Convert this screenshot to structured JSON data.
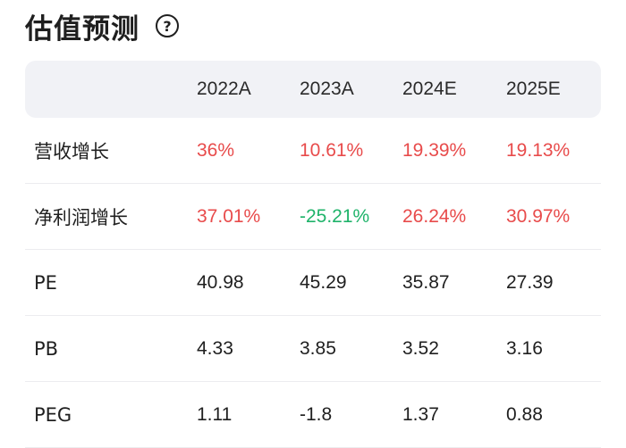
{
  "header": {
    "title": "估值预测",
    "help_glyph": "?"
  },
  "table": {
    "columns": [
      "2022A",
      "2023A",
      "2024E",
      "2025E"
    ],
    "rows": [
      {
        "label": "营收增长",
        "values": [
          "36%",
          "10.61%",
          "19.39%",
          "19.13%"
        ],
        "trend": [
          "up",
          "up",
          "up",
          "up"
        ]
      },
      {
        "label": "净利润增长",
        "values": [
          "37.01%",
          "-25.21%",
          "26.24%",
          "30.97%"
        ],
        "trend": [
          "up",
          "down",
          "up",
          "up"
        ]
      },
      {
        "label": "PE",
        "values": [
          "40.98",
          "45.29",
          "35.87",
          "27.39"
        ],
        "trend": [
          "none",
          "none",
          "none",
          "none"
        ]
      },
      {
        "label": "PB",
        "values": [
          "4.33",
          "3.85",
          "3.52",
          "3.16"
        ],
        "trend": [
          "none",
          "none",
          "none",
          "none"
        ]
      },
      {
        "label": "PEG",
        "values": [
          "1.11",
          "-1.8",
          "1.37",
          "0.88"
        ],
        "trend": [
          "none",
          "none",
          "none",
          "none"
        ]
      }
    ]
  },
  "colors": {
    "positive": "#e84b4b",
    "negative": "#1fb36a",
    "header_bg": "#f1f2f6"
  }
}
